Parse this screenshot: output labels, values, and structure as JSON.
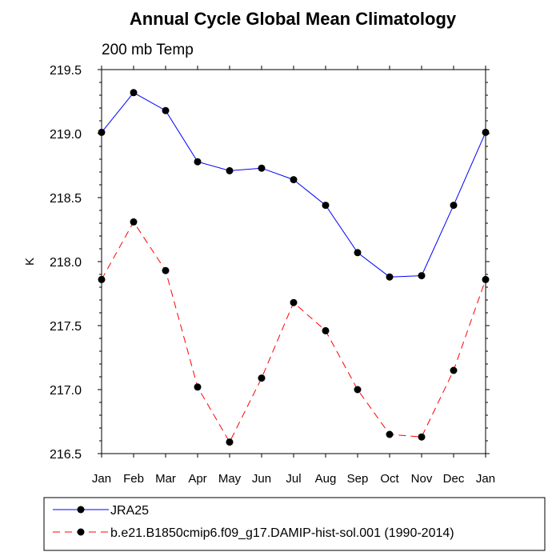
{
  "chart_data": {
    "type": "line",
    "title": "Annual Cycle Global Mean Climatology",
    "subtitle": "200 mb Temp",
    "ylabel": "K",
    "xlabel": "",
    "categories": [
      "Jan",
      "Feb",
      "Mar",
      "Apr",
      "May",
      "Jun",
      "Jul",
      "Aug",
      "Sep",
      "Oct",
      "Nov",
      "Dec",
      "Jan"
    ],
    "ylim": [
      216.5,
      219.5
    ],
    "yticks": [
      216.5,
      217.0,
      217.5,
      218.0,
      218.5,
      219.0,
      219.5
    ],
    "ytick_labels": [
      "216.5",
      "217.0",
      "217.5",
      "218.0",
      "218.5",
      "219.0",
      "219.5"
    ],
    "series": [
      {
        "name": "JRA25",
        "color": "#0000ff",
        "dash": "solid",
        "values": [
          219.01,
          219.32,
          219.18,
          218.78,
          218.71,
          218.73,
          218.64,
          218.44,
          218.07,
          217.88,
          217.89,
          218.44,
          219.01
        ]
      },
      {
        "name": "b.e21.B1850cmip6.f09_g17.DAMIP-hist-sol.001 (1990-2014)",
        "color": "#ff0000",
        "dash": "dashed",
        "values": [
          217.86,
          218.31,
          217.93,
          217.02,
          216.59,
          217.09,
          217.68,
          217.46,
          217.0,
          216.65,
          216.63,
          217.15,
          217.86
        ]
      }
    ],
    "legend_position": "bottom",
    "grid": false
  }
}
